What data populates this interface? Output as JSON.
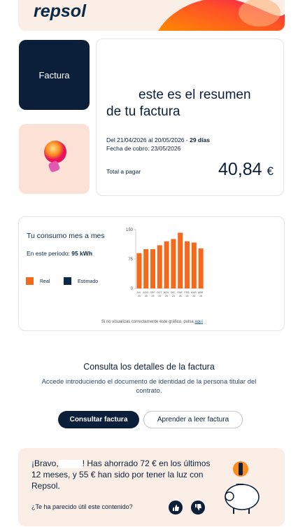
{
  "header": {
    "logo": "repsol"
  },
  "nav": {
    "tab": "Factura"
  },
  "summary": {
    "line1": "este es el resumen",
    "line2": "de tu factura",
    "period": "Del 21/04/2026 al 20/05/2026 - ",
    "days": "29 días",
    "payment_date": "Fecha de cobro: 23/05/2026",
    "total_label": "Total a pagar",
    "total_amount": "40,84",
    "currency": "€"
  },
  "consumption": {
    "title": "Tu consumo mes a mes",
    "period_label": "En este periodo: ",
    "period_value": "95 kWh",
    "note": "Si no visualizas correctamente este gráfico, pulsa ",
    "note_link": "aquí"
  },
  "chart_data": {
    "type": "bar",
    "categories": [
      "JUL 25",
      "AGO 25",
      "SEP 25",
      "OCT 25",
      "NOV 25",
      "DIC 25",
      "ENE 26",
      "FEB 26",
      "MAR 26",
      "ABR 26"
    ],
    "series": [
      {
        "name": "Real",
        "color": "#f36a1d",
        "values": [
          90,
          100,
          100,
          110,
          120,
          126,
          142,
          120,
          117,
          102
        ]
      },
      {
        "name": "Estimado",
        "color": "#0b2a4a",
        "values": [
          null,
          null,
          null,
          null,
          null,
          null,
          null,
          null,
          null,
          null
        ]
      }
    ],
    "ylim": [
      0,
      150
    ],
    "yticks": [
      0,
      75,
      150
    ]
  },
  "details": {
    "title": "Consulta los detalles de la factura",
    "text": "Accede introduciendo el documento de identidad de la persona titular del contrato.",
    "buttons": [
      "Consultar factura",
      "Aprender a leer factura"
    ]
  },
  "savings": {
    "bravo": "¡Bravo,",
    "message": "! Has ahorrado 72 € en los últimos 12 meses, y 55 € han sido por tener la luz con Repsol.",
    "question": "¿Te ha parecido útil este contenido?"
  }
}
